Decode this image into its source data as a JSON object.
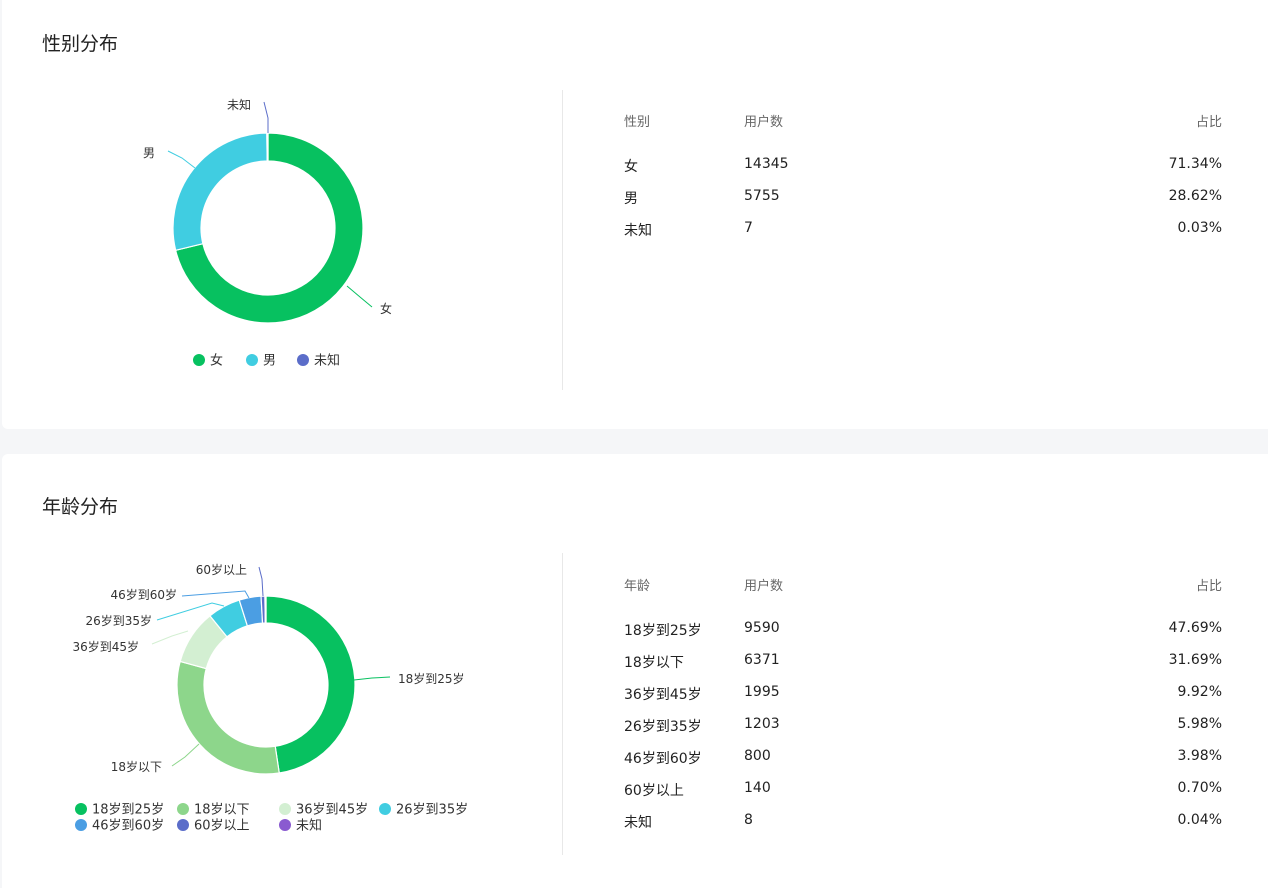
{
  "sections": [
    {
      "title": "性别分布",
      "table": {
        "headers": [
          "性别",
          "用户数",
          "占比"
        ],
        "rows": [
          [
            "女",
            "14345",
            "71.34%"
          ],
          [
            "男",
            "5755",
            "28.62%"
          ],
          [
            "未知",
            "7",
            "0.03%"
          ]
        ]
      }
    },
    {
      "title": "年龄分布",
      "table": {
        "headers": [
          "年龄",
          "用户数",
          "占比"
        ],
        "rows": [
          [
            "18岁到25岁",
            "9590",
            "47.69%"
          ],
          [
            "18岁以下",
            "6371",
            "31.69%"
          ],
          [
            "36岁到45岁",
            "1995",
            "9.92%"
          ],
          [
            "26岁到35岁",
            "1203",
            "5.98%"
          ],
          [
            "46岁到60岁",
            "800",
            "3.98%"
          ],
          [
            "60岁以上",
            "140",
            "0.70%"
          ],
          [
            "未知",
            "8",
            "0.04%"
          ]
        ]
      }
    }
  ],
  "chart_data": [
    {
      "type": "pie",
      "variant": "donut",
      "categories": [
        "女",
        "男",
        "未知"
      ],
      "values": [
        14345,
        5755,
        7
      ],
      "colors": [
        "#07c160",
        "#40cde1",
        "#5b6dc9"
      ],
      "legend_position": "bottom",
      "title": ""
    },
    {
      "type": "pie",
      "variant": "donut",
      "categories": [
        "18岁到25岁",
        "18岁以下",
        "36岁到45岁",
        "26岁到35岁",
        "46岁到60岁",
        "60岁以上",
        "未知"
      ],
      "values": [
        9590,
        6371,
        1995,
        1203,
        800,
        140,
        8
      ],
      "colors": [
        "#07c160",
        "#8dd68b",
        "#d3efd2",
        "#40cde1",
        "#4b9ee3",
        "#5b6dc9",
        "#8a5bd0"
      ],
      "legend_position": "bottom",
      "title": ""
    }
  ]
}
